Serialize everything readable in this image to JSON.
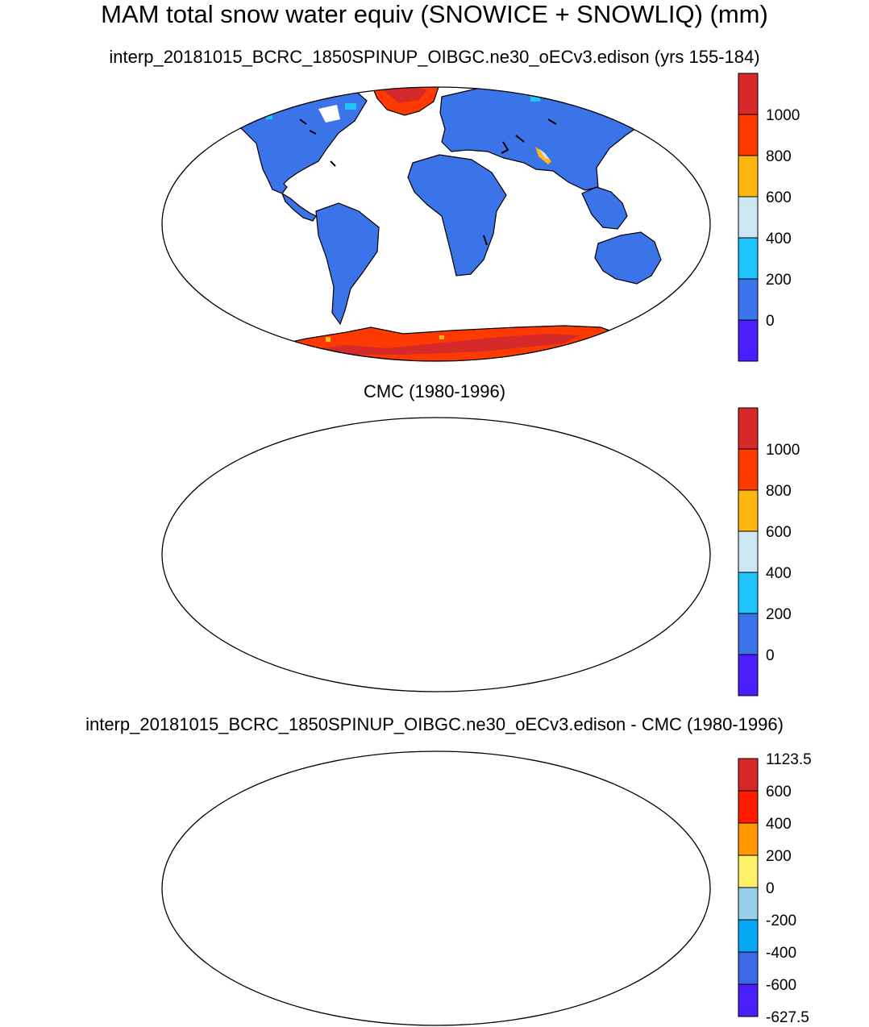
{
  "figure": {
    "title": "MAM total snow water equiv (SNOWICE + SNOWLIQ) (mm)"
  },
  "panels": [
    {
      "title": "interp_20181015_BCRC_1850SPINUP_OIBGC.ne30_oECv3.edison (yrs 155-184)",
      "colorbar": {
        "labels": [
          "1000",
          "800",
          "600",
          "400",
          "200",
          "0"
        ],
        "colors": [
          "#d62a2a",
          "#ff3a00",
          "#ffb60f",
          "#cce6f4",
          "#1ec3ff",
          "#3b73e8",
          "#4a1dfc"
        ]
      },
      "map_colors": {
        "land": "#3b73e8",
        "ice": "#ff3a00",
        "ice_dark": "#d62a2a",
        "alpine": "#1ec3ff"
      }
    },
    {
      "title": "CMC (1980-1996)",
      "colorbar": {
        "labels": [
          "1000",
          "800",
          "600",
          "400",
          "200",
          "0"
        ],
        "colors": [
          "#d62a2a",
          "#ff3a00",
          "#ffb60f",
          "#cce6f4",
          "#1ec3ff",
          "#3b73e8",
          "#4a1dfc"
        ]
      },
      "map_colors": {
        "land": "#3b73e8",
        "alpine": "#1ec3ff"
      }
    },
    {
      "title": "interp_20181015_BCRC_1850SPINUP_OIBGC.ne30_oECv3.edison - CMC (1980-1996)",
      "colorbar": {
        "labels": [
          "1123.5",
          "600",
          "400",
          "200",
          "0",
          "-200",
          "-400",
          "-600",
          "-627.5"
        ],
        "colors": [
          "#d62a2a",
          "#ff1c00",
          "#ff9800",
          "#fff168",
          "#9acdea",
          "#08a6f6",
          "#3b69e8",
          "#4a1dfc"
        ]
      },
      "map_colors": {
        "positive": "#fff168",
        "negative": "#9acdea",
        "greenland": "#d62a2a"
      }
    }
  ]
}
